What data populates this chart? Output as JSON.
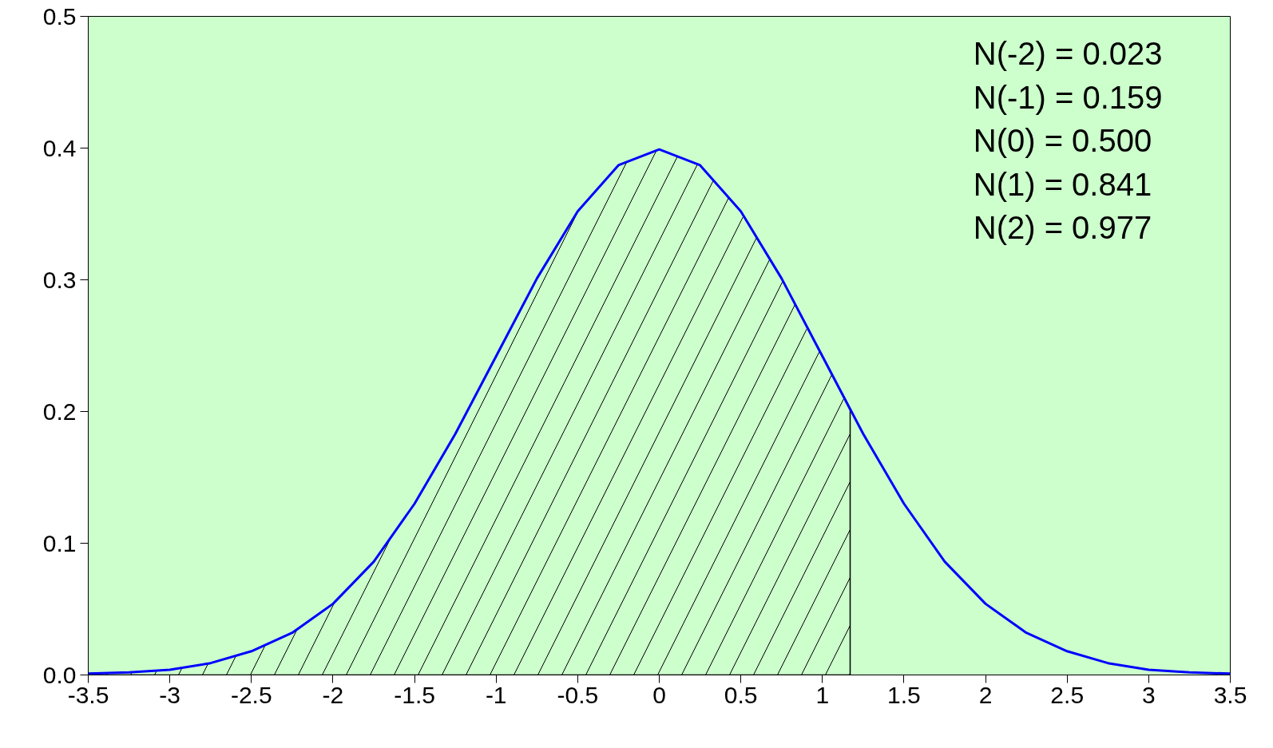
{
  "chart_data": {
    "type": "line",
    "xlim": [
      -3.5,
      3.5
    ],
    "ylim": [
      0,
      0.5
    ],
    "xticks": [
      -3.5,
      -3,
      -2.5,
      -2,
      -1.5,
      -1,
      -0.5,
      0,
      0.5,
      1,
      1.5,
      2,
      2.5,
      3,
      3.5
    ],
    "yticks": [
      {
        "value": 0,
        "label": "0.0"
      },
      0.1,
      0.2,
      0.3,
      0.4,
      0.5
    ],
    "grid": false,
    "marker": "none",
    "line_style": "solid",
    "series": [
      {
        "type": "area",
        "color": "#000000",
        "x": [
          -3.5,
          -3.25,
          -3,
          -2.75,
          -2.5,
          -2.25,
          -2,
          -1.75,
          -1.5,
          -1.25,
          -1,
          -0.75,
          -0.5,
          -0.25,
          0,
          0.25,
          0.5,
          0.75,
          1,
          1.17
        ],
        "values": [
          0.001,
          0.002,
          0.004,
          0.009,
          0.018,
          0.032,
          0.054,
          0.086,
          0.13,
          0.183,
          0.242,
          0.301,
          0.352,
          0.387,
          0.399,
          0.387,
          0.352,
          0.301,
          0.242,
          0.201
        ]
      },
      {
        "color": "#0000ff",
        "x": [
          -3.5,
          -3.25,
          -3,
          -2.75,
          -2.5,
          -2.25,
          -2,
          -1.75,
          -1.5,
          -1.25,
          -1,
          -0.75,
          -0.5,
          -0.25,
          0,
          0.25,
          0.5,
          0.75,
          1,
          1.25,
          1.5,
          1.75,
          2,
          2.25,
          2.5,
          2.75,
          3,
          3.25,
          3.5
        ],
        "values": [
          0.001,
          0.002,
          0.004,
          0.009,
          0.018,
          0.032,
          0.054,
          0.086,
          0.13,
          0.183,
          0.242,
          0.301,
          0.352,
          0.387,
          0.399,
          0.387,
          0.352,
          0.301,
          0.242,
          0.183,
          0.13,
          0.086,
          0.054,
          0.032,
          0.018,
          0.009,
          0.004,
          0.002,
          0.001
        ]
      }
    ],
    "annotations": [
      "N(-2) = 0.023",
      "N(-1) = 0.159",
      "N(0)  = 0.500",
      "N(1)  = 0.841",
      "N(2)  = 0.977"
    ]
  }
}
